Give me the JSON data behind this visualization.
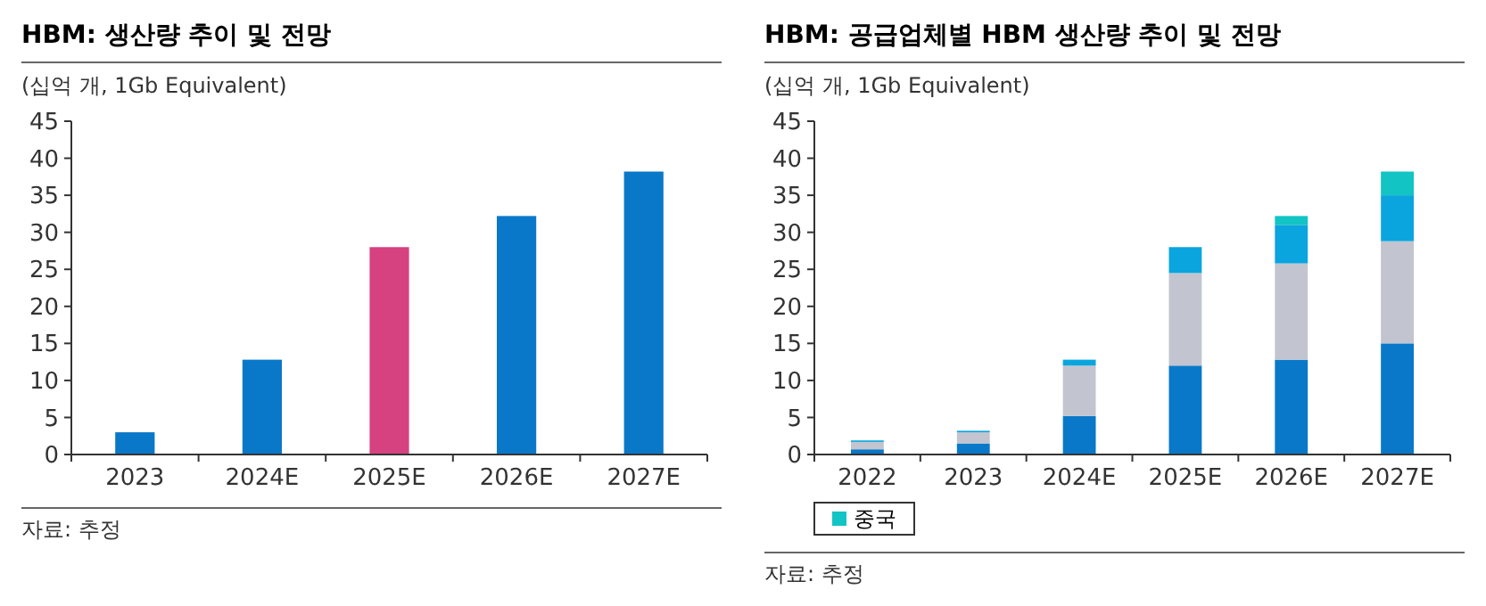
{
  "chart_data": [
    {
      "type": "bar",
      "title": "HBM: 생산량 추이 및 전망",
      "ylabel": "(십억 개, 1Gb Equivalent)",
      "categories": [
        "2023",
        "2024E",
        "2025E",
        "2026E",
        "2027E"
      ],
      "values": [
        3.0,
        12.8,
        28,
        32.2,
        38.2
      ],
      "colors": [
        "#0a78c8",
        "#0a78c8",
        "#d6417f",
        "#0a78c8",
        "#0a78c8"
      ],
      "ylim": [
        0,
        45
      ],
      "yticks": [
        0,
        5,
        10,
        15,
        20,
        25,
        30,
        35,
        40,
        45
      ],
      "grid": false,
      "legend": false,
      "annotations": [
        "자료: 추정"
      ]
    },
    {
      "type": "bar",
      "title": "HBM: 공급업체별 HBM 생산량 추이 및 전망",
      "ylabel": "(십억 개, 1Gb Equivalent)",
      "categories": [
        "2022",
        "2023",
        "2024E",
        "2025E",
        "2026E",
        "2027E"
      ],
      "stacked": true,
      "series": [
        {
          "color": "#0a78c8",
          "values": [
            0.7,
            1.5,
            5.2,
            12,
            12.8,
            15
          ]
        },
        {
          "color": "#c2c5cf",
          "values": [
            1.0,
            1.5,
            6.8,
            12.5,
            13,
            13.8
          ]
        },
        {
          "color": "#0aa5de",
          "values": [
            0.2,
            0.2,
            0.8,
            3.5,
            5.2,
            6.2
          ]
        },
        {
          "name": "중국",
          "color": "#12c4c4",
          "values": [
            0,
            0,
            0,
            0,
            1.2,
            3.2
          ]
        }
      ],
      "ylim": [
        0,
        45
      ],
      "yticks": [
        0,
        5,
        10,
        15,
        20,
        25,
        30,
        35,
        40,
        45
      ],
      "grid": false,
      "legend": "bottom",
      "annotations": [
        "자료: 추정"
      ]
    }
  ]
}
